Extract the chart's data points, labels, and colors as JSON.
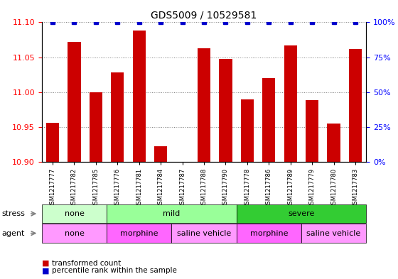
{
  "title": "GDS5009 / 10529581",
  "samples": [
    "GSM1217777",
    "GSM1217782",
    "GSM1217785",
    "GSM1217776",
    "GSM1217781",
    "GSM1217784",
    "GSM1217787",
    "GSM1217788",
    "GSM1217790",
    "GSM1217778",
    "GSM1217786",
    "GSM1217789",
    "GSM1217779",
    "GSM1217780",
    "GSM1217783"
  ],
  "transformed_counts": [
    10.956,
    11.072,
    11.0,
    11.028,
    11.088,
    10.922,
    10.9,
    11.063,
    11.048,
    10.99,
    11.02,
    11.067,
    10.988,
    10.955,
    11.062
  ],
  "percentile_ranks": [
    100,
    100,
    100,
    100,
    100,
    100,
    100,
    100,
    100,
    100,
    100,
    100,
    100,
    100,
    100
  ],
  "ylim_left": [
    10.9,
    11.1
  ],
  "ylim_right": [
    0,
    100
  ],
  "yticks_left": [
    10.9,
    10.95,
    11.0,
    11.05,
    11.1
  ],
  "yticks_right": [
    0,
    25,
    50,
    75,
    100
  ],
  "bar_color": "#cc0000",
  "percentile_color": "#0000cc",
  "stress_groups": [
    {
      "label": "none",
      "start": 0,
      "end": 3,
      "color": "#ccffcc"
    },
    {
      "label": "mild",
      "start": 3,
      "end": 9,
      "color": "#99ff99"
    },
    {
      "label": "severe",
      "start": 9,
      "end": 15,
      "color": "#33cc33"
    }
  ],
  "agent_groups": [
    {
      "label": "none",
      "start": 0,
      "end": 3,
      "color": "#ff99ff"
    },
    {
      "label": "morphine",
      "start": 3,
      "end": 6,
      "color": "#ff66ff"
    },
    {
      "label": "saline vehicle",
      "start": 6,
      "end": 9,
      "color": "#ff99ff"
    },
    {
      "label": "morphine",
      "start": 9,
      "end": 12,
      "color": "#ff66ff"
    },
    {
      "label": "saline vehicle",
      "start": 12,
      "end": 15,
      "color": "#ff99ff"
    }
  ],
  "stress_row_label": "stress",
  "agent_row_label": "agent",
  "legend_items": [
    {
      "label": "transformed count",
      "color": "#cc0000"
    },
    {
      "label": "percentile rank within the sample",
      "color": "#0000cc"
    }
  ]
}
